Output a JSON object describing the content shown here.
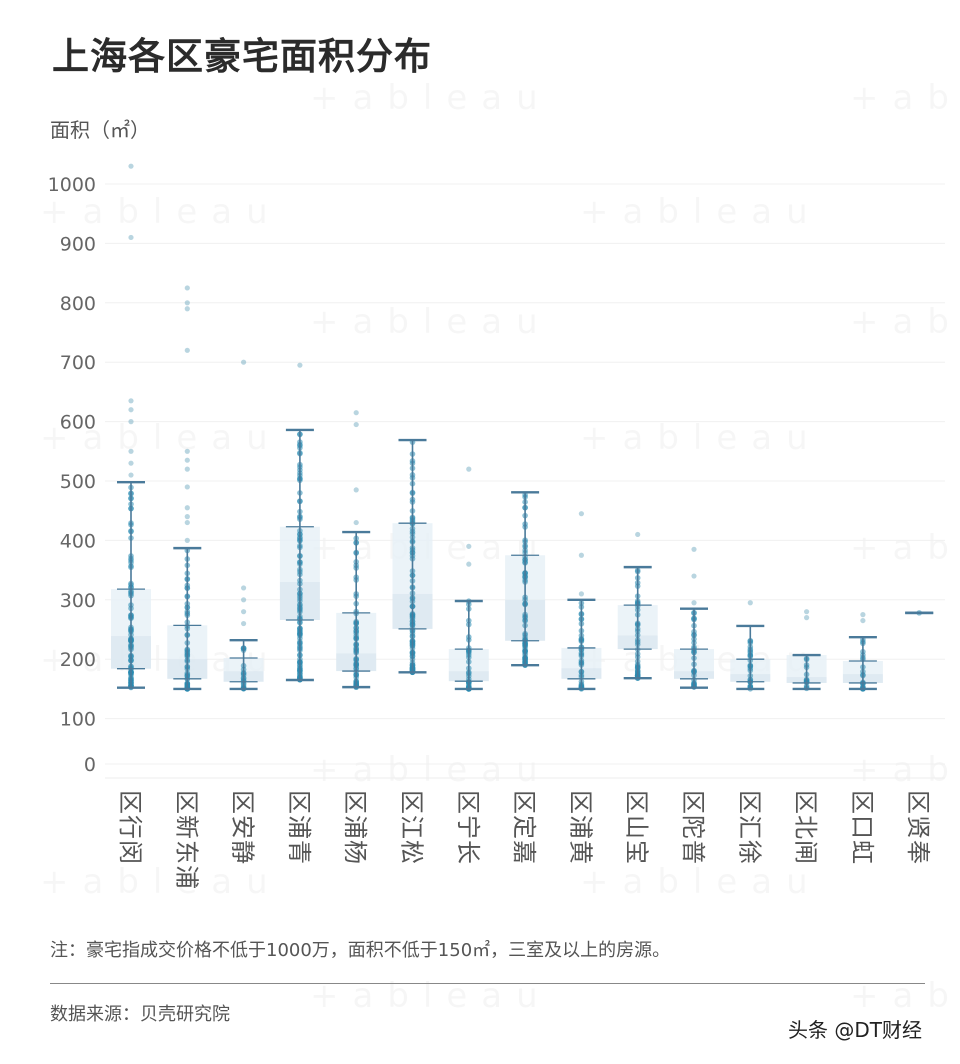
{
  "title": "上海各区豪宅面积分布",
  "y_axis_label": "面积（㎡）",
  "note": "注：豪宅指成交价格不低于1000万，面积不低于150㎡，三室及以上的房源。",
  "source": "数据来源：贝壳研究院",
  "credit": "头条 @DT财经",
  "watermark_text": "+ableau",
  "colors": {
    "whisker": "#4a7a9a",
    "dot": "#2a8bb0",
    "box_fill": "#e6f0f6",
    "grid": "#f0f0f0",
    "title": "#2b2b2b"
  },
  "chart_data": {
    "type": "box",
    "title": "上海各区豪宅面积分布",
    "xlabel": "",
    "ylabel": "面积（㎡）",
    "ylim": [
      0,
      1000
    ],
    "yticks": [
      0,
      100,
      200,
      300,
      400,
      500,
      600,
      700,
      800,
      900,
      1000
    ],
    "grid": true,
    "legend": null,
    "categories": [
      "闵行区",
      "浦东新区",
      "静安区",
      "青浦区",
      "杨浦区",
      "松江区",
      "长宁区",
      "嘉定区",
      "黄浦区",
      "宝山区",
      "普陀区",
      "徐汇区",
      "闸北区",
      "虹口区",
      "奉贤区"
    ],
    "series": [
      {
        "name": "闵行区",
        "min": 152,
        "q1": 184,
        "median": 239,
        "q3": 318,
        "max": 498,
        "outliers": [
          510,
          530,
          550,
          600,
          620,
          635,
          910,
          1030
        ]
      },
      {
        "name": "浦东新区",
        "min": 150,
        "q1": 167,
        "median": 200,
        "q3": 257,
        "max": 387,
        "outliers": [
          400,
          430,
          440,
          455,
          490,
          520,
          535,
          550,
          720,
          790,
          800,
          825
        ]
      },
      {
        "name": "静安区",
        "min": 150,
        "q1": 162,
        "median": 180,
        "q3": 202,
        "max": 232,
        "outliers": [
          260,
          280,
          300,
          320,
          700
        ]
      },
      {
        "name": "青浦区",
        "min": 165,
        "q1": 266,
        "median": 330,
        "q3": 423,
        "max": 586,
        "outliers": [
          695
        ]
      },
      {
        "name": "杨浦区",
        "min": 153,
        "q1": 180,
        "median": 210,
        "q3": 278,
        "max": 414,
        "outliers": [
          430,
          485,
          595,
          615
        ]
      },
      {
        "name": "松江区",
        "min": 178,
        "q1": 251,
        "median": 310,
        "q3": 429,
        "max": 569,
        "outliers": []
      },
      {
        "name": "长宁区",
        "min": 150,
        "q1": 163,
        "median": 180,
        "q3": 217,
        "max": 298,
        "outliers": [
          360,
          390,
          520
        ]
      },
      {
        "name": "嘉定区",
        "min": 190,
        "q1": 231,
        "median": 300,
        "q3": 375,
        "max": 481,
        "outliers": []
      },
      {
        "name": "黄浦区",
        "min": 150,
        "q1": 167,
        "median": 185,
        "q3": 219,
        "max": 300,
        "outliers": [
          310,
          375,
          445
        ]
      },
      {
        "name": "宝山区",
        "min": 168,
        "q1": 217,
        "median": 240,
        "q3": 291,
        "max": 355,
        "outliers": [
          410
        ]
      },
      {
        "name": "普陀区",
        "min": 152,
        "q1": 167,
        "median": 180,
        "q3": 217,
        "max": 285,
        "outliers": [
          295,
          340,
          385
        ]
      },
      {
        "name": "徐汇区",
        "min": 150,
        "q1": 162,
        "median": 175,
        "q3": 200,
        "max": 256,
        "outliers": [
          295
        ]
      },
      {
        "name": "闸北区",
        "min": 150,
        "q1": 160,
        "median": 170,
        "q3": 207,
        "max": 207,
        "outliers": [
          270,
          280
        ]
      },
      {
        "name": "虹口区",
        "min": 150,
        "q1": 160,
        "median": 175,
        "q3": 197,
        "max": 237,
        "outliers": [
          265,
          275
        ]
      },
      {
        "name": "奉贤区",
        "min": 278,
        "q1": 278,
        "median": 278,
        "q3": 278,
        "max": 278,
        "outliers": []
      }
    ]
  }
}
